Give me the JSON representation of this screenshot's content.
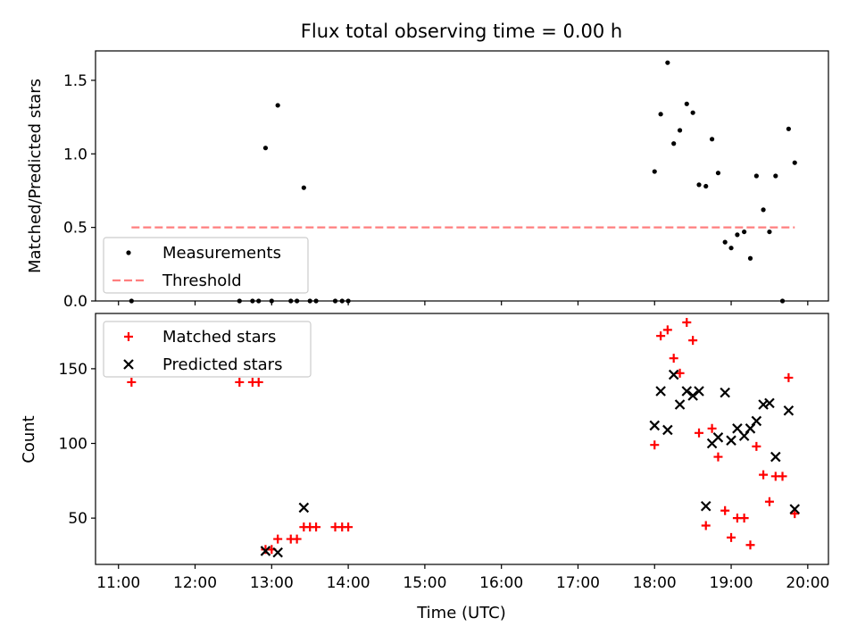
{
  "figure": {
    "title": "Flux total observing time = 0.00 h",
    "xlabel": "Time (UTC)"
  },
  "chart_data": [
    {
      "type": "scatter",
      "ylabel": "Matched/Predicted stars",
      "xlim": [
        10.7,
        20.27
      ],
      "ylim": [
        0,
        1.7
      ],
      "yticks": [
        0.0,
        0.5,
        1.0,
        1.5
      ],
      "ytick_labels": [
        "0.0",
        "0.5",
        "1.0",
        "1.5"
      ],
      "legend": {
        "position": "lower-left",
        "entries": [
          "Measurements",
          "Threshold"
        ]
      },
      "series": [
        {
          "name": "Measurements",
          "color": "#000000",
          "marker": "dot",
          "x": [
            11.17,
            12.58,
            12.75,
            12.83,
            12.92,
            13.0,
            13.08,
            13.25,
            13.33,
            13.42,
            13.5,
            13.58,
            13.83,
            13.92,
            14.0,
            18.0,
            18.08,
            18.17,
            18.25,
            18.33,
            18.42,
            18.5,
            18.58,
            18.67,
            18.75,
            18.83,
            18.92,
            19.0,
            19.08,
            19.17,
            19.25,
            19.33,
            19.42,
            19.5,
            19.58,
            19.67,
            19.75,
            19.83
          ],
          "y": [
            0,
            0,
            0,
            0,
            1.04,
            0,
            1.33,
            0,
            0,
            0.77,
            0,
            0,
            0,
            0,
            0,
            0.88,
            1.27,
            1.62,
            1.07,
            1.16,
            1.34,
            1.28,
            0.79,
            0.78,
            1.1,
            0.87,
            0.4,
            0.36,
            0.45,
            0.47,
            0.29,
            0.85,
            0.62,
            0.47,
            0.85,
            0,
            1.17,
            0.94
          ]
        },
        {
          "name": "Threshold",
          "color": "#ff7f7f",
          "style": "dashed",
          "x": [
            11.17,
            19.83
          ],
          "y": [
            0.5,
            0.5
          ]
        }
      ]
    },
    {
      "type": "scatter",
      "ylabel": "Count",
      "xlabel": "Time (UTC)",
      "xlim": [
        10.7,
        20.27
      ],
      "ylim": [
        19,
        187
      ],
      "yticks": [
        50,
        100,
        150
      ],
      "ytick_labels": [
        "50",
        "100",
        "150"
      ],
      "xticks": [
        11,
        12,
        13,
        14,
        15,
        16,
        17,
        18,
        19,
        20
      ],
      "xtick_labels": [
        "11:00",
        "12:00",
        "13:00",
        "14:00",
        "15:00",
        "16:00",
        "17:00",
        "18:00",
        "19:00",
        "20:00"
      ],
      "legend": {
        "position": "upper-left",
        "entries": [
          "Matched stars",
          "Predicted stars"
        ]
      },
      "series": [
        {
          "name": "Matched stars",
          "color": "#ff0000",
          "marker": "plus",
          "x": [
            11.17,
            12.58,
            12.75,
            12.83,
            12.92,
            13.0,
            13.08,
            13.25,
            13.33,
            13.42,
            13.5,
            13.58,
            13.83,
            13.92,
            14.0,
            18.0,
            18.08,
            18.17,
            18.25,
            18.33,
            18.42,
            18.5,
            18.58,
            18.67,
            18.75,
            18.83,
            18.92,
            19.0,
            19.08,
            19.17,
            19.25,
            19.33,
            19.42,
            19.5,
            19.58,
            19.67,
            19.75,
            19.83
          ],
          "y": [
            141,
            141,
            141,
            141,
            29,
            29,
            36,
            36,
            36,
            44,
            44,
            44,
            44,
            44,
            44,
            99,
            172,
            176,
            157,
            147,
            181,
            169,
            107,
            45,
            110,
            91,
            55,
            37,
            50,
            50,
            32,
            98,
            79,
            61,
            78,
            78,
            144,
            53
          ]
        },
        {
          "name": "Predicted stars",
          "color": "#000000",
          "marker": "x",
          "x": [
            12.92,
            13.08,
            13.42,
            18.0,
            18.08,
            18.17,
            18.25,
            18.33,
            18.42,
            18.5,
            18.58,
            18.67,
            18.75,
            18.83,
            18.92,
            19.0,
            19.08,
            19.17,
            19.25,
            19.33,
            19.42,
            19.5,
            19.58,
            19.75,
            19.83
          ],
          "y": [
            28,
            27,
            57,
            112,
            135,
            109,
            146,
            126,
            135,
            132,
            135,
            58,
            100,
            104,
            134,
            102,
            110,
            105,
            110,
            115,
            126,
            127,
            91,
            122,
            56
          ]
        }
      ]
    }
  ]
}
